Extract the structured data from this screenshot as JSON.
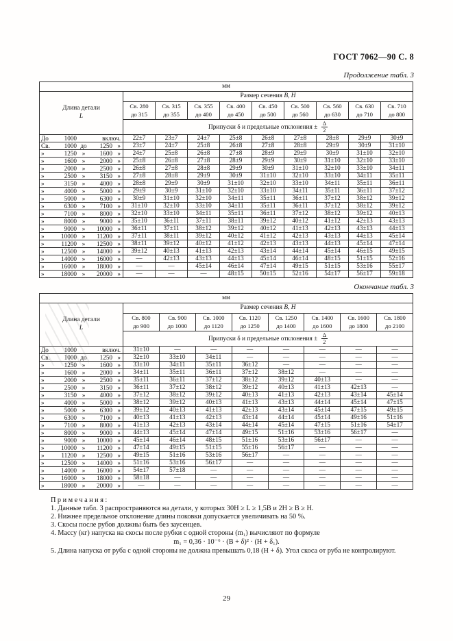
{
  "page": {
    "header": "ГОСТ 7062—90 С. 8",
    "number": "29"
  },
  "table1": {
    "caption": "Продолжение табл. 3",
    "unit": "мм",
    "length_title": "Длина детали",
    "length_symbol": "L",
    "size_title": "Размер сечения",
    "size_vars": "B, H",
    "tol_prefix": "Припуски δ и предельные отклонения  ±",
    "tol_num": "Δ",
    "tol_den": "2",
    "columns": [
      [
        "Св. 280",
        "до 315"
      ],
      [
        "Св. 315",
        "до 355"
      ],
      [
        "Св. 355",
        "до 400"
      ],
      [
        "Св. 400",
        "до 450"
      ],
      [
        "Св. 450",
        "до 500"
      ],
      [
        "Св. 500",
        "до 560"
      ],
      [
        "Св. 560",
        "до 630"
      ],
      [
        "Св. 630",
        "до 710"
      ],
      [
        "Св. 710",
        "до 800"
      ]
    ],
    "rows": [
      {
        "len": [
          "До",
          "1000",
          "",
          "",
          "включ."
        ],
        "vals": [
          "22±7",
          "23±7",
          "24±7",
          "25±8",
          "26±8",
          "27±8",
          "28±8",
          "29±9",
          "30±9"
        ]
      },
      {
        "len": [
          "Св.",
          "1000",
          "до",
          "1250",
          "»"
        ],
        "vals": [
          "23±7",
          "24±7",
          "25±8",
          "26±8",
          "27±8",
          "28±8",
          "29±9",
          "30±9",
          "31±10"
        ]
      },
      {
        "len": [
          "»",
          "1250",
          "»",
          "1600",
          "»"
        ],
        "vals": [
          "24±7",
          "25±8",
          "26±8",
          "27±8",
          "28±9",
          "29±9",
          "30±9",
          "31±10",
          "32±10"
        ]
      },
      {
        "len": [
          "»",
          "1600",
          "»",
          "2000",
          "»"
        ],
        "vals": [
          "25±8",
          "26±8",
          "27±8",
          "28±9",
          "29±9",
          "30±9",
          "31±10",
          "32±10",
          "33±10"
        ]
      },
      {
        "len": [
          "»",
          "2000",
          "»",
          "2500",
          "»"
        ],
        "vals": [
          "26±8",
          "27±8",
          "28±8",
          "29±9",
          "30±9",
          "31±10",
          "32±10",
          "33±10",
          "34±11"
        ]
      },
      {
        "len": [
          "»",
          "2500",
          "»",
          "3150",
          "»"
        ],
        "vals": [
          "27±8",
          "28±8",
          "29±9",
          "30±9",
          "31±10",
          "32±10",
          "33±10",
          "34±11",
          "35±11"
        ]
      },
      {
        "len": [
          "»",
          "3150",
          "»",
          "4000",
          "»"
        ],
        "vals": [
          "28±8",
          "29±9",
          "30±9",
          "31±10",
          "32±10",
          "33±10",
          "34±11",
          "35±11",
          "36±11"
        ]
      },
      {
        "len": [
          "»",
          "4000",
          "»",
          "5000",
          "»"
        ],
        "vals": [
          "29±9",
          "30±9",
          "31±10",
          "32±10",
          "33±10",
          "34±11",
          "35±11",
          "36±11",
          "37±12"
        ]
      },
      {
        "len": [
          "»",
          "5000",
          "»",
          "6300",
          "»"
        ],
        "vals": [
          "30±9",
          "31±10",
          "32±10",
          "34±11",
          "35±11",
          "36±11",
          "37±12",
          "38±12",
          "39±12"
        ]
      },
      {
        "len": [
          "»",
          "6300",
          "»",
          "7100",
          "»"
        ],
        "vals": [
          "31±10",
          "32±10",
          "33±10",
          "34±11",
          "35±11",
          "36±11",
          "37±12",
          "38±12",
          "39±12"
        ]
      },
      {
        "len": [
          "»",
          "7100",
          "»",
          "8000",
          "»"
        ],
        "vals": [
          "32±10",
          "33±10",
          "34±11",
          "35±11",
          "36±11",
          "37±12",
          "38±12",
          "39±12",
          "40±13"
        ]
      },
      {
        "len": [
          "»",
          "8000",
          "»",
          "9000",
          "»"
        ],
        "vals": [
          "35±10",
          "36±11",
          "37±11",
          "38±11",
          "39±12",
          "40±12",
          "41±12",
          "42±13",
          "43±13"
        ]
      },
      {
        "len": [
          "»",
          "9000",
          "»",
          "10000",
          "»"
        ],
        "vals": [
          "36±11",
          "37±11",
          "38±12",
          "39±12",
          "40±12",
          "41±13",
          "42±13",
          "43±13",
          "44±13"
        ]
      },
      {
        "len": [
          "»",
          "10000",
          "»",
          "11200",
          "»"
        ],
        "vals": [
          "37±11",
          "38±11",
          "39±12",
          "40±12",
          "41±12",
          "42±13",
          "43±13",
          "44±13",
          "45±14"
        ]
      },
      {
        "len": [
          "»",
          "11200",
          "»",
          "12500",
          "»"
        ],
        "vals": [
          "38±11",
          "39±12",
          "40±12",
          "41±12",
          "42±13",
          "43±13",
          "44±13",
          "45±14",
          "47±14"
        ]
      },
      {
        "len": [
          "»",
          "12500",
          "»",
          "14000",
          "»"
        ],
        "vals": [
          "39±12",
          "40±13",
          "41±13",
          "42±13",
          "43±14",
          "44±14",
          "45±14",
          "46±15",
          "49±15"
        ]
      },
      {
        "len": [
          "»",
          "14000",
          "»",
          "16000",
          "»"
        ],
        "vals": [
          "—",
          "42±13",
          "43±13",
          "44±13",
          "45±14",
          "46±14",
          "48±15",
          "51±15",
          "52±16"
        ]
      },
      {
        "len": [
          "»",
          "16000",
          "»",
          "18000",
          "»"
        ],
        "vals": [
          "—",
          "—",
          "45±14",
          "46±14",
          "47±14",
          "49±15",
          "51±15",
          "53±16",
          "55±17"
        ]
      },
      {
        "len": [
          "»",
          "18000",
          "»",
          "20000",
          "»"
        ],
        "vals": [
          "—",
          "—",
          "—",
          "48±15",
          "50±15",
          "52±16",
          "54±17",
          "56±17",
          "59±18"
        ]
      }
    ]
  },
  "table2": {
    "caption": "Окончание табл. 3",
    "unit": "мм",
    "length_title": "Длина детали",
    "length_symbol": "L",
    "size_title": "Размер сечения",
    "size_vars": "B, H",
    "tol_prefix": "Припуски δ и предельные отклонения  ±",
    "tol_num": "Δ",
    "tol_den": "2",
    "columns": [
      [
        "Св. 800",
        "до 900"
      ],
      [
        "Св. 900",
        "до 1000"
      ],
      [
        "Св. 1000",
        "до 1120"
      ],
      [
        "Св. 1120",
        "до 1250"
      ],
      [
        "Св. 1250",
        "до 1400"
      ],
      [
        "Св. 1400",
        "до 1600"
      ],
      [
        "Св. 1600",
        "до 1800"
      ],
      [
        "Св. 1800",
        "до 2100"
      ]
    ],
    "rows": [
      {
        "len": [
          "До",
          "1000",
          "",
          "",
          "включ."
        ],
        "vals": [
          "31±10",
          "—",
          "—",
          "—",
          "—",
          "—",
          "—",
          "—"
        ]
      },
      {
        "len": [
          "Св.",
          "1000",
          "до",
          "1250",
          "»"
        ],
        "vals": [
          "32±10",
          "33±10",
          "34±11",
          "—",
          "—",
          "—",
          "—",
          "—"
        ]
      },
      {
        "len": [
          "»",
          "1250",
          "»",
          "1600",
          "»"
        ],
        "vals": [
          "33±10",
          "34±11",
          "35±11",
          "36±12",
          "—",
          "—",
          "—",
          "—"
        ]
      },
      {
        "len": [
          "»",
          "1600",
          "»",
          "2000",
          "»"
        ],
        "vals": [
          "34±11",
          "35±11",
          "36±11",
          "37±12",
          "38±12",
          "—",
          "—",
          "—"
        ]
      },
      {
        "len": [
          "»",
          "2000",
          "»",
          "2500",
          "»"
        ],
        "vals": [
          "35±11",
          "36±11",
          "37±12",
          "38±12",
          "39±12",
          "40±13",
          "—",
          "—"
        ]
      },
      {
        "len": [
          "»",
          "2500",
          "»",
          "3150",
          "»"
        ],
        "vals": [
          "36±11",
          "37±12",
          "38±12",
          "39±12",
          "40±13",
          "41±13",
          "42±13",
          "—"
        ]
      },
      {
        "len": [
          "»",
          "3150",
          "»",
          "4000",
          "»"
        ],
        "vals": [
          "37±12",
          "38±12",
          "39±12",
          "40±13",
          "41±13",
          "42±13",
          "43±14",
          "45±14"
        ]
      },
      {
        "len": [
          "»",
          "4000",
          "»",
          "5000",
          "»"
        ],
        "vals": [
          "38±12",
          "39±12",
          "40±13",
          "41±13",
          "43±13",
          "44±14",
          "45±14",
          "47±15"
        ]
      },
      {
        "len": [
          "»",
          "5000",
          "»",
          "6300",
          "»"
        ],
        "vals": [
          "39±12",
          "40±13",
          "41±13",
          "42±13",
          "43±14",
          "45±14",
          "47±15",
          "49±15"
        ]
      },
      {
        "len": [
          "»",
          "6300",
          "»",
          "7100",
          "»"
        ],
        "vals": [
          "40±13",
          "41±13",
          "42±13",
          "43±14",
          "44±14",
          "45±14",
          "49±16",
          "51±16"
        ]
      },
      {
        "len": [
          "»",
          "7100",
          "»",
          "8000",
          "»"
        ],
        "vals": [
          "41±13",
          "42±13",
          "43±14",
          "44±14",
          "45±14",
          "47±15",
          "51±16",
          "54±17"
        ]
      },
      {
        "len": [
          "»",
          "8000",
          "»",
          "9000",
          "»"
        ],
        "vals": [
          "44±13",
          "45±14",
          "47±14",
          "49±15",
          "51±16",
          "53±16",
          "56±17",
          "—"
        ]
      },
      {
        "len": [
          "»",
          "9000",
          "»",
          "10000",
          "»"
        ],
        "vals": [
          "45±14",
          "46±14",
          "48±15",
          "51±16",
          "53±16",
          "56±17",
          "—",
          "—"
        ]
      },
      {
        "len": [
          "»",
          "10000",
          "»",
          "11200",
          "»"
        ],
        "vals": [
          "47±14",
          "49±15",
          "51±15",
          "55±16",
          "56±17",
          "—",
          "—",
          "—"
        ]
      },
      {
        "len": [
          "»",
          "11200",
          "»",
          "12500",
          "»"
        ],
        "vals": [
          "49±15",
          "51±16",
          "53±16",
          "56±17",
          "—",
          "—",
          "—",
          "—"
        ]
      },
      {
        "len": [
          "»",
          "12500",
          "»",
          "14000",
          "»"
        ],
        "vals": [
          "51±16",
          "53±16",
          "56±17",
          "—",
          "—",
          "—",
          "—",
          "—"
        ]
      },
      {
        "len": [
          "»",
          "14000",
          "»",
          "16000",
          "»"
        ],
        "vals": [
          "54±17",
          "57±18",
          "—",
          "—",
          "—",
          "—",
          "—",
          "—"
        ]
      },
      {
        "len": [
          "»",
          "16000",
          "»",
          "18000",
          "»"
        ],
        "vals": [
          "58±18",
          "—",
          "—",
          "—",
          "—",
          "—",
          "—",
          "—"
        ]
      },
      {
        "len": [
          "»",
          "18000",
          "»",
          "20000",
          "»"
        ],
        "vals": [
          "—",
          "—",
          "—",
          "—",
          "—",
          "—",
          "—",
          "—"
        ]
      }
    ]
  },
  "notes": {
    "title": "Примечания:",
    "items": [
      {
        "num": "1.",
        "text": "Данные табл. 3 распространяются на детали, у которых 30H ≥ L ≥ 1,5B и 2H ≥ B ≥ H."
      },
      {
        "num": "2.",
        "text": "Нижнее предельное отклонение длины поковки допускается увеличивать на 50 %."
      },
      {
        "num": "3.",
        "text": "Скосы после рубов должны быть без заусенцев."
      },
      {
        "num": "4.",
        "text": "Массу (кг) напуска на скосы после рубки с одной стороны (m₁) вычисляют по формуле",
        "formula": "m₁ = 0,36 · 10⁻⁶ · (B + δ)² · (H + δ₁)."
      },
      {
        "num": "5.",
        "text": "Длина напуска от руба с одной стороны не должна превышать 0,18 (H + δ). Угол скоса от руба не контролируют."
      }
    ]
  }
}
